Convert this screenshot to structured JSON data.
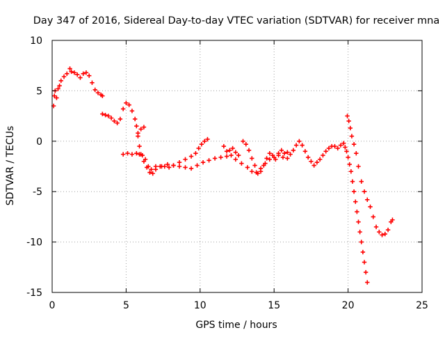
{
  "chart_data": {
    "type": "scatter",
    "title": "Day 347 of 2016, Sidereal Day-to-day VTEC variation (SDTVAR) for receiver mna",
    "xlabel": "GPS time / hours",
    "ylabel": "SDTVAR / TECUs",
    "xlim": [
      0,
      25
    ],
    "ylim": [
      -15,
      10
    ],
    "xticks": [
      0,
      5,
      10,
      15,
      20,
      25
    ],
    "yticks": [
      -15,
      -10,
      -5,
      0,
      5,
      10
    ],
    "grid": true,
    "legend": "none",
    "marker": "plus",
    "color": "#ff0000",
    "series": [
      {
        "values": [
          [
            0.1,
            3.5
          ],
          [
            0.15,
            4.5
          ],
          [
            0.2,
            5.0
          ],
          [
            0.3,
            4.3
          ],
          [
            0.4,
            5.2
          ],
          [
            0.5,
            5.5
          ],
          [
            0.6,
            6.0
          ],
          [
            0.8,
            6.4
          ],
          [
            1.0,
            6.7
          ],
          [
            1.2,
            7.2
          ],
          [
            1.3,
            6.9
          ],
          [
            1.5,
            6.8
          ],
          [
            1.7,
            6.6
          ],
          [
            1.9,
            6.3
          ],
          [
            2.1,
            6.7
          ],
          [
            2.3,
            6.8
          ],
          [
            2.5,
            6.5
          ],
          [
            2.7,
            5.8
          ],
          [
            2.9,
            5.1
          ],
          [
            3.1,
            4.8
          ],
          [
            3.3,
            4.6
          ],
          [
            3.4,
            4.5
          ]
        ]
      },
      {
        "values": [
          [
            3.4,
            2.7
          ],
          [
            3.6,
            2.6
          ],
          [
            3.8,
            2.5
          ],
          [
            4.0,
            2.3
          ],
          [
            4.2,
            2.0
          ],
          [
            4.4,
            1.8
          ],
          [
            4.6,
            2.2
          ],
          [
            4.8,
            3.2
          ],
          [
            5.0,
            3.8
          ],
          [
            5.2,
            3.6
          ],
          [
            5.4,
            3.0
          ],
          [
            5.6,
            2.2
          ],
          [
            5.7,
            1.5
          ],
          [
            5.8,
            0.5
          ],
          [
            5.9,
            -0.5
          ],
          [
            6.0,
            -1.3
          ],
          [
            6.2,
            -2.0
          ],
          [
            6.4,
            -2.6
          ],
          [
            6.6,
            -3.1
          ],
          [
            6.8,
            -3.2
          ],
          [
            7.0,
            -2.8
          ],
          [
            7.3,
            -2.5
          ],
          [
            7.6,
            -2.5
          ],
          [
            7.9,
            -2.6
          ],
          [
            8.2,
            -2.4
          ],
          [
            8.6,
            -2.1
          ],
          [
            9.0,
            -1.8
          ],
          [
            9.4,
            -1.5
          ],
          [
            9.7,
            -1.2
          ],
          [
            9.9,
            -0.7
          ],
          [
            10.1,
            -0.3
          ],
          [
            10.3,
            0.0
          ],
          [
            10.5,
            0.2
          ]
        ]
      },
      {
        "values": [
          [
            4.8,
            -1.3
          ],
          [
            5.1,
            -1.2
          ],
          [
            5.4,
            -1.3
          ],
          [
            5.7,
            -1.2
          ],
          [
            5.9,
            -1.3
          ],
          [
            6.1,
            -1.4
          ],
          [
            6.3,
            -1.8
          ],
          [
            6.5,
            -2.5
          ],
          [
            6.7,
            -2.8
          ],
          [
            7.0,
            -2.5
          ],
          [
            7.4,
            -2.5
          ],
          [
            7.8,
            -2.3
          ],
          [
            8.2,
            -2.4
          ],
          [
            8.6,
            -2.5
          ],
          [
            9.0,
            -2.6
          ],
          [
            9.4,
            -2.7
          ],
          [
            9.8,
            -2.4
          ],
          [
            10.2,
            -2.1
          ],
          [
            10.6,
            -1.9
          ],
          [
            11.0,
            -1.7
          ],
          [
            11.4,
            -1.6
          ],
          [
            11.8,
            -1.5
          ],
          [
            12.1,
            -1.4
          ],
          [
            12.4,
            -1.8
          ],
          [
            12.8,
            -2.2
          ],
          [
            13.2,
            -2.6
          ],
          [
            13.5,
            -3.0
          ],
          [
            13.8,
            -3.1
          ],
          [
            14.1,
            -2.7
          ],
          [
            14.4,
            -2.2
          ],
          [
            14.7,
            -1.8
          ],
          [
            15.0,
            -1.6
          ],
          [
            15.3,
            -1.4
          ],
          [
            15.6,
            -1.6
          ],
          [
            15.9,
            -1.7
          ]
        ]
      },
      {
        "values": [
          [
            5.8,
            0.8
          ],
          [
            6.0,
            1.2
          ],
          [
            6.2,
            1.4
          ]
        ]
      },
      {
        "values": [
          [
            11.6,
            -0.5
          ],
          [
            11.8,
            -1.0
          ],
          [
            12.0,
            -0.9
          ],
          [
            12.2,
            -0.7
          ],
          [
            12.4,
            -1.1
          ],
          [
            12.6,
            -1.4
          ]
        ]
      },
      {
        "values": [
          [
            12.9,
            0.0
          ],
          [
            13.1,
            -0.3
          ],
          [
            13.3,
            -0.9
          ],
          [
            13.5,
            -1.7
          ],
          [
            13.7,
            -2.4
          ],
          [
            13.9,
            -3.2
          ],
          [
            14.1,
            -3.0
          ],
          [
            14.3,
            -2.4
          ],
          [
            14.5,
            -1.7
          ],
          [
            14.7,
            -1.2
          ],
          [
            14.9,
            -1.4
          ],
          [
            15.1,
            -1.8
          ],
          [
            15.3,
            -1.2
          ],
          [
            15.5,
            -0.9
          ],
          [
            15.7,
            -1.2
          ],
          [
            15.9,
            -1.1
          ],
          [
            16.1,
            -1.3
          ],
          [
            16.3,
            -0.9
          ],
          [
            16.5,
            -0.4
          ],
          [
            16.7,
            0.0
          ],
          [
            16.9,
            -0.4
          ],
          [
            17.1,
            -1.0
          ],
          [
            17.3,
            -1.6
          ],
          [
            17.5,
            -2.0
          ],
          [
            17.7,
            -2.4
          ],
          [
            17.9,
            -2.1
          ],
          [
            18.1,
            -1.8
          ],
          [
            18.3,
            -1.4
          ],
          [
            18.5,
            -1.0
          ],
          [
            18.7,
            -0.7
          ],
          [
            18.9,
            -0.5
          ],
          [
            19.1,
            -0.5
          ],
          [
            19.3,
            -0.7
          ],
          [
            19.5,
            -0.4
          ],
          [
            19.7,
            -0.2
          ],
          [
            19.8,
            -0.6
          ],
          [
            19.9,
            -1.0
          ],
          [
            20.0,
            -1.6
          ],
          [
            20.1,
            -2.3
          ],
          [
            20.2,
            -3.0
          ],
          [
            20.3,
            -4.0
          ],
          [
            20.4,
            -5.0
          ],
          [
            20.5,
            -6.0
          ],
          [
            20.6,
            -7.0
          ],
          [
            20.7,
            -8.0
          ],
          [
            20.8,
            -9.0
          ],
          [
            20.9,
            -10.0
          ],
          [
            21.0,
            -11.0
          ],
          [
            21.1,
            -12.0
          ],
          [
            21.2,
            -13.0
          ],
          [
            21.3,
            -14.0
          ]
        ]
      },
      {
        "values": [
          [
            19.95,
            2.5
          ],
          [
            20.05,
            2.0
          ],
          [
            20.15,
            1.3
          ],
          [
            20.25,
            0.5
          ],
          [
            20.4,
            -0.3
          ],
          [
            20.55,
            -1.2
          ],
          [
            20.7,
            -2.5
          ],
          [
            20.9,
            -4.0
          ],
          [
            21.1,
            -5.0
          ],
          [
            21.3,
            -5.8
          ],
          [
            21.5,
            -6.5
          ],
          [
            21.7,
            -7.5
          ],
          [
            21.9,
            -8.5
          ],
          [
            22.1,
            -9.0
          ],
          [
            22.3,
            -9.3
          ],
          [
            22.5,
            -9.2
          ],
          [
            22.7,
            -8.8
          ],
          [
            22.9,
            -8.0
          ],
          [
            23.0,
            -7.8
          ]
        ]
      }
    ]
  }
}
